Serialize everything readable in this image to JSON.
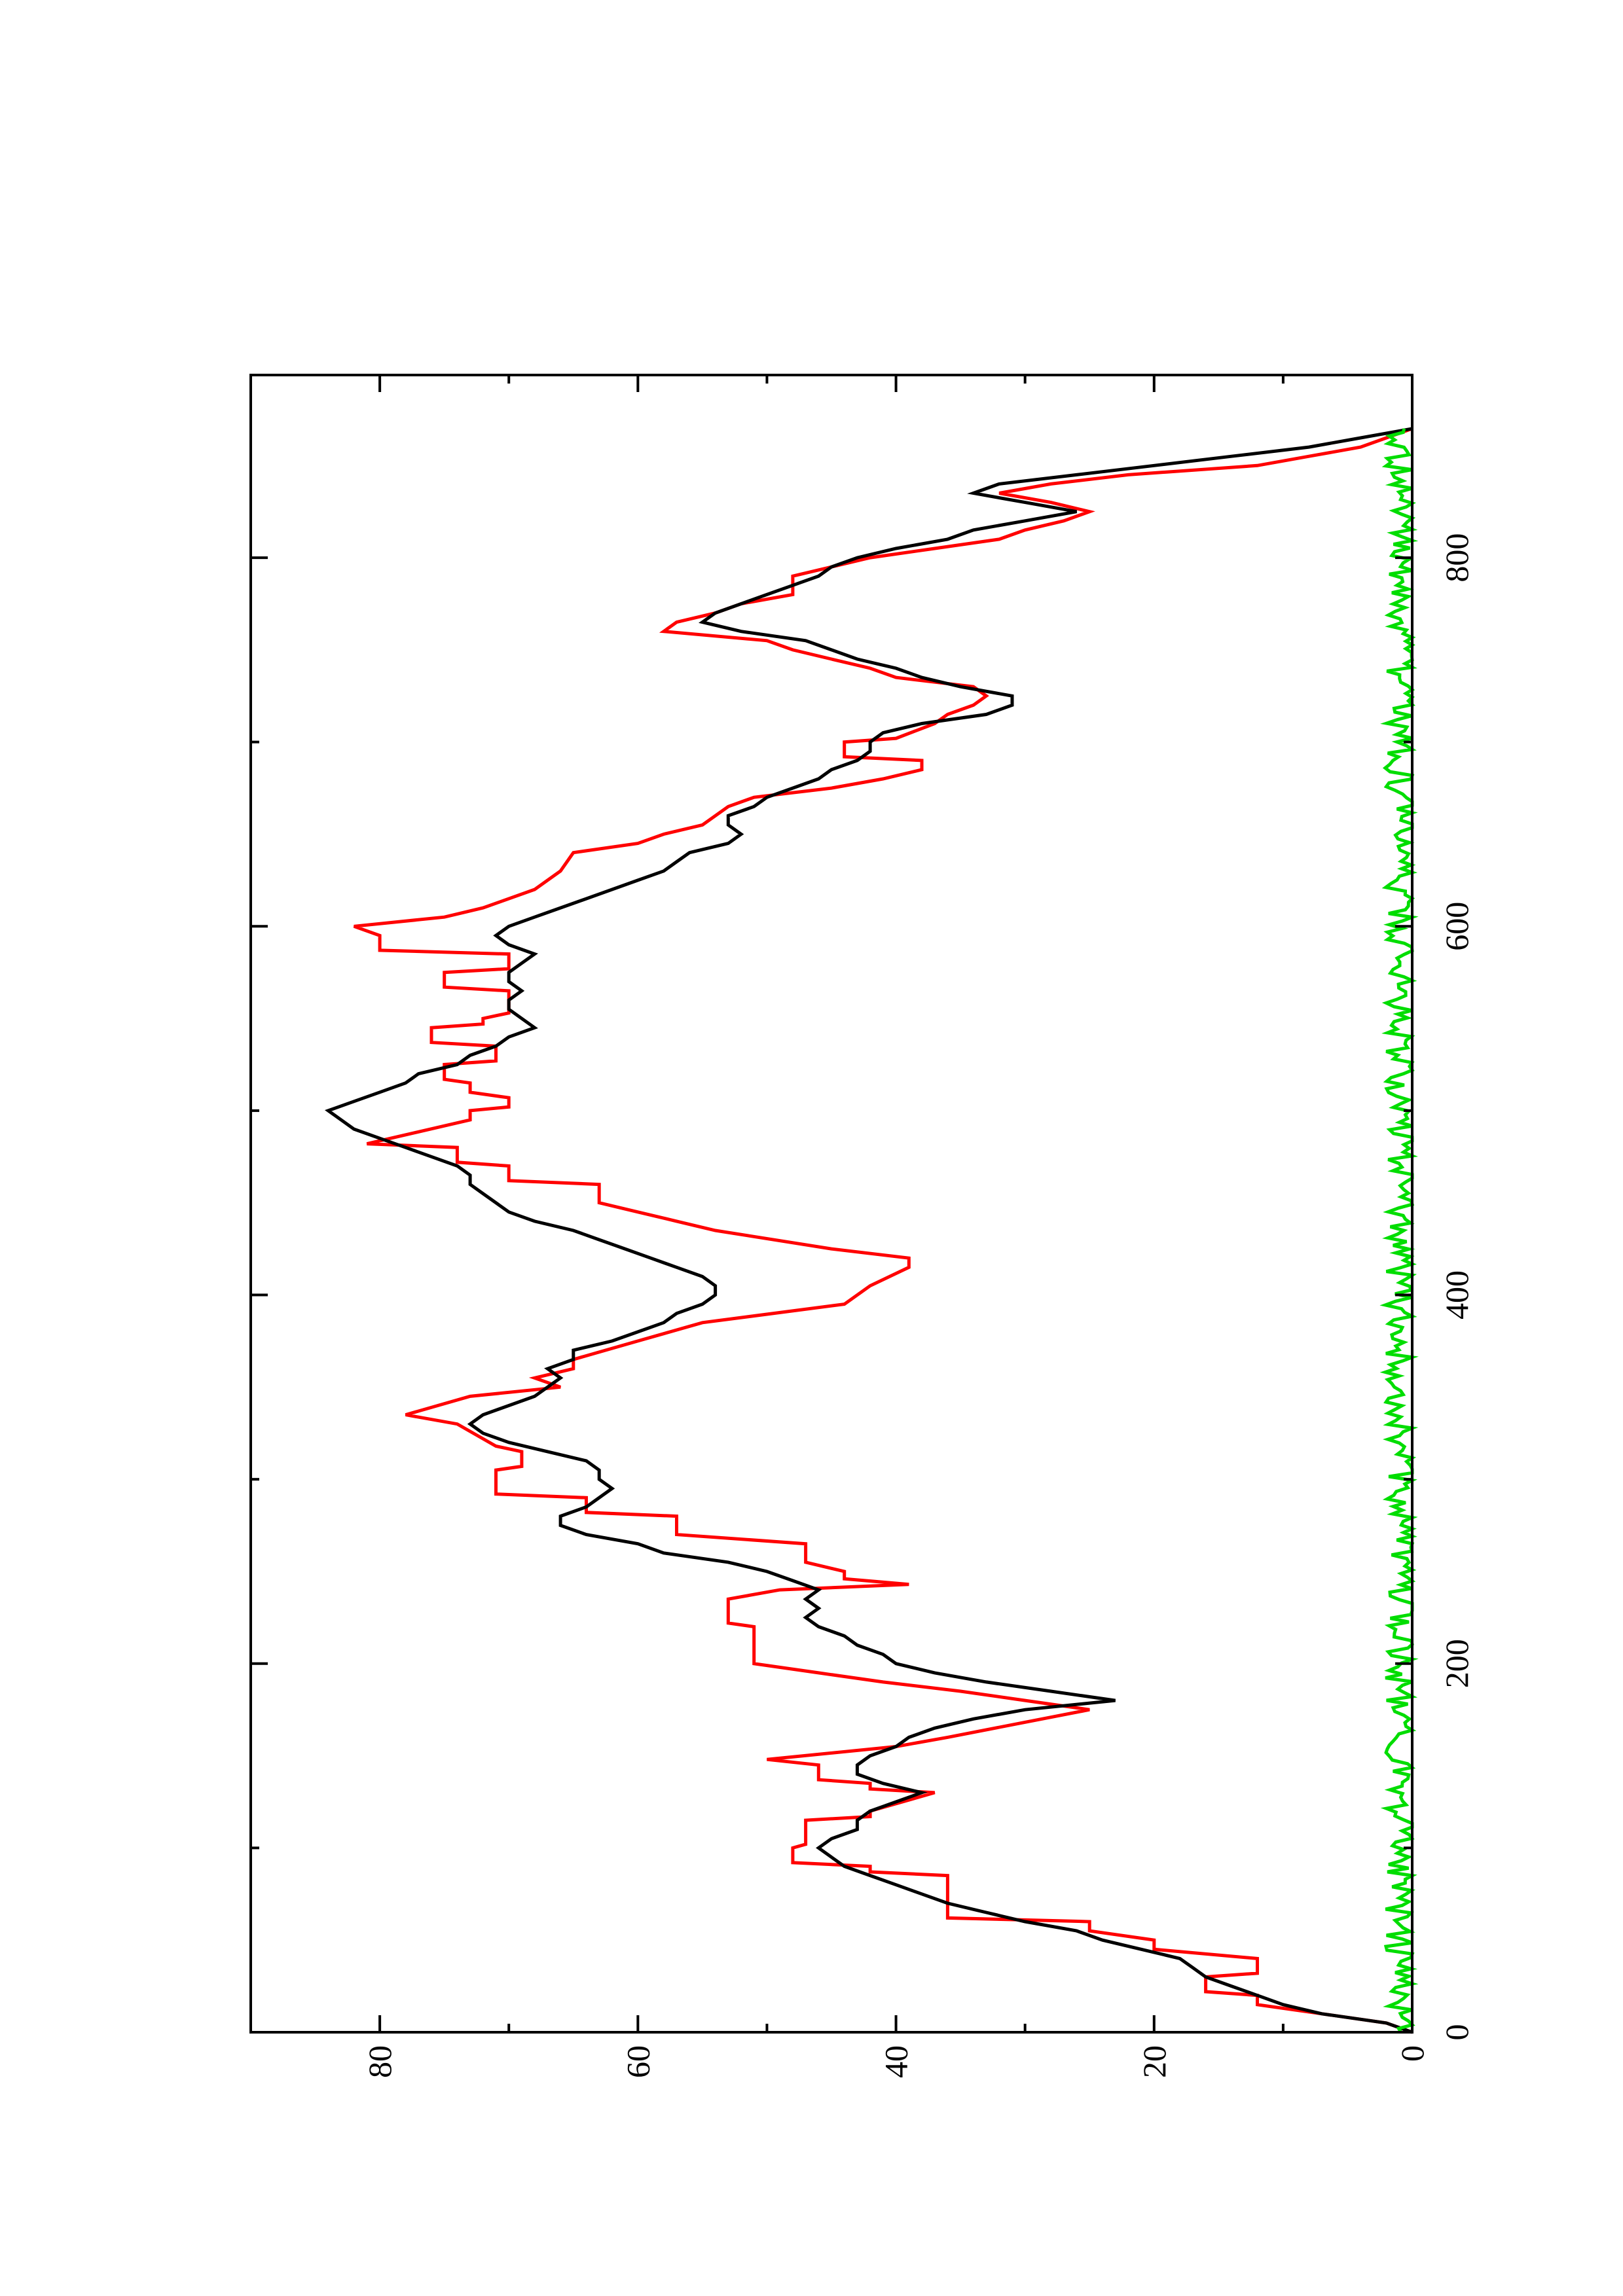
{
  "chart_data": {
    "type": "line",
    "orientation": "rotated-90-counterclockwise",
    "xlabel": "",
    "ylabel": "",
    "xlim": [
      0,
      880
    ],
    "ylim": [
      0,
      90
    ],
    "grid": false,
    "x_ticks": [
      0,
      200,
      400,
      600,
      800
    ],
    "x_tick_labels": [
      "0",
      "200",
      "400",
      "600",
      "800"
    ],
    "x_minor_ticks": [
      100,
      300,
      500,
      700
    ],
    "y_ticks": [
      0,
      20,
      40,
      60,
      80
    ],
    "y_tick_labels": [
      "0",
      "20",
      "40",
      "60",
      "80"
    ],
    "y_minor_ticks": [
      10,
      30,
      50,
      70
    ],
    "series": [
      {
        "color": "#ff0000",
        "style": "step",
        "points": [
          [
            0,
            0
          ],
          [
            5,
            2
          ],
          [
            10,
            7
          ],
          [
            15,
            12
          ],
          [
            20,
            12
          ],
          [
            22,
            16
          ],
          [
            30,
            16
          ],
          [
            32,
            12
          ],
          [
            40,
            12
          ],
          [
            45,
            20
          ],
          [
            50,
            20
          ],
          [
            55,
            25
          ],
          [
            60,
            25
          ],
          [
            62,
            36
          ],
          [
            85,
            36
          ],
          [
            87,
            42
          ],
          [
            90,
            42
          ],
          [
            92,
            48
          ],
          [
            100,
            48
          ],
          [
            102,
            47
          ],
          [
            115,
            47
          ],
          [
            117,
            42
          ],
          [
            120,
            42
          ],
          [
            130,
            37
          ],
          [
            132,
            42
          ],
          [
            135,
            42
          ],
          [
            137,
            46
          ],
          [
            145,
            46
          ],
          [
            148,
            50
          ],
          [
            155,
            40
          ],
          [
            160,
            36
          ],
          [
            175,
            25
          ],
          [
            180,
            30
          ],
          [
            185,
            35
          ],
          [
            190,
            41
          ],
          [
            195,
            46
          ],
          [
            200,
            51
          ],
          [
            220,
            51
          ],
          [
            222,
            53
          ],
          [
            235,
            53
          ],
          [
            240,
            49
          ],
          [
            243,
            39
          ],
          [
            246,
            44
          ],
          [
            250,
            44
          ],
          [
            255,
            47
          ],
          [
            265,
            47
          ],
          [
            270,
            57
          ],
          [
            280,
            57
          ],
          [
            282,
            64
          ],
          [
            290,
            64
          ],
          [
            292,
            71
          ],
          [
            305,
            71
          ],
          [
            307,
            69
          ],
          [
            315,
            69
          ],
          [
            318,
            71
          ],
          [
            330,
            74
          ],
          [
            335,
            78
          ],
          [
            345,
            73
          ],
          [
            350,
            66
          ],
          [
            355,
            68
          ],
          [
            360,
            65
          ],
          [
            365,
            65
          ],
          [
            375,
            60
          ],
          [
            385,
            55
          ],
          [
            395,
            44
          ],
          [
            405,
            42
          ],
          [
            415,
            39
          ],
          [
            420,
            39
          ],
          [
            425,
            45
          ],
          [
            435,
            54
          ],
          [
            440,
            57
          ],
          [
            445,
            60
          ],
          [
            450,
            63
          ],
          [
            460,
            63
          ],
          [
            462,
            70
          ],
          [
            470,
            70
          ],
          [
            472,
            74
          ],
          [
            480,
            74
          ],
          [
            482,
            81
          ],
          [
            495,
            73
          ],
          [
            500,
            73
          ],
          [
            502,
            70
          ],
          [
            507,
            70
          ],
          [
            510,
            73
          ],
          [
            515,
            73
          ],
          [
            517,
            75
          ],
          [
            525,
            75
          ],
          [
            527,
            71
          ],
          [
            535,
            71
          ],
          [
            537,
            76
          ],
          [
            545,
            76
          ],
          [
            547,
            72
          ],
          [
            550,
            72
          ],
          [
            553,
            70
          ],
          [
            565,
            70
          ],
          [
            567,
            75
          ],
          [
            575,
            75
          ],
          [
            577,
            70
          ],
          [
            585,
            70
          ],
          [
            587,
            80
          ],
          [
            595,
            80
          ],
          [
            600,
            82
          ],
          [
            605,
            75
          ],
          [
            610,
            72
          ],
          [
            620,
            68
          ],
          [
            630,
            66
          ],
          [
            640,
            65
          ],
          [
            645,
            60
          ],
          [
            650,
            58
          ],
          [
            655,
            55
          ],
          [
            665,
            53
          ],
          [
            670,
            51
          ],
          [
            675,
            45
          ],
          [
            680,
            41
          ],
          [
            685,
            38
          ],
          [
            690,
            38
          ],
          [
            692,
            44
          ],
          [
            700,
            44
          ],
          [
            702,
            40
          ],
          [
            710,
            37
          ],
          [
            715,
            36
          ],
          [
            720,
            34
          ],
          [
            725,
            33
          ],
          [
            730,
            34
          ],
          [
            735,
            40
          ],
          [
            740,
            42
          ],
          [
            745,
            45
          ],
          [
            750,
            48
          ],
          [
            755,
            50
          ],
          [
            760,
            58
          ],
          [
            765,
            57
          ],
          [
            770,
            54
          ],
          [
            775,
            52
          ],
          [
            780,
            48
          ],
          [
            790,
            48
          ],
          [
            795,
            45
          ],
          [
            800,
            42
          ],
          [
            805,
            37
          ],
          [
            810,
            32
          ],
          [
            815,
            30
          ],
          [
            820,
            27
          ],
          [
            825,
            25
          ],
          [
            830,
            28
          ],
          [
            835,
            32
          ],
          [
            840,
            28
          ],
          [
            845,
            22
          ],
          [
            850,
            12
          ],
          [
            855,
            8
          ],
          [
            860,
            4
          ],
          [
            865,
            2
          ],
          [
            870,
            0
          ]
        ]
      },
      {
        "color": "#000000",
        "style": "line",
        "points": [
          [
            0,
            0
          ],
          [
            5,
            2
          ],
          [
            10,
            7
          ],
          [
            15,
            10
          ],
          [
            20,
            12
          ],
          [
            25,
            14
          ],
          [
            30,
            16
          ],
          [
            35,
            17
          ],
          [
            40,
            18
          ],
          [
            45,
            21
          ],
          [
            50,
            24
          ],
          [
            55,
            26
          ],
          [
            60,
            30
          ],
          [
            65,
            33
          ],
          [
            70,
            36
          ],
          [
            75,
            38
          ],
          [
            80,
            40
          ],
          [
            85,
            42
          ],
          [
            90,
            44
          ],
          [
            95,
            45
          ],
          [
            100,
            46
          ],
          [
            105,
            45
          ],
          [
            110,
            43
          ],
          [
            115,
            43
          ],
          [
            120,
            42
          ],
          [
            125,
            40
          ],
          [
            130,
            38
          ],
          [
            135,
            41
          ],
          [
            140,
            43
          ],
          [
            145,
            43
          ],
          [
            150,
            42
          ],
          [
            155,
            40
          ],
          [
            160,
            39
          ],
          [
            165,
            37
          ],
          [
            170,
            34
          ],
          [
            175,
            30
          ],
          [
            180,
            23
          ],
          [
            185,
            28
          ],
          [
            190,
            33
          ],
          [
            195,
            37
          ],
          [
            200,
            40
          ],
          [
            205,
            41
          ],
          [
            210,
            43
          ],
          [
            215,
            44
          ],
          [
            220,
            46
          ],
          [
            225,
            47
          ],
          [
            230,
            46
          ],
          [
            235,
            47
          ],
          [
            240,
            46
          ],
          [
            245,
            48
          ],
          [
            250,
            50
          ],
          [
            255,
            53
          ],
          [
            260,
            58
          ],
          [
            265,
            60
          ],
          [
            270,
            64
          ],
          [
            275,
            66
          ],
          [
            280,
            66
          ],
          [
            285,
            64
          ],
          [
            290,
            63
          ],
          [
            295,
            62
          ],
          [
            300,
            63
          ],
          [
            305,
            63
          ],
          [
            310,
            64
          ],
          [
            315,
            67
          ],
          [
            320,
            70
          ],
          [
            325,
            72
          ],
          [
            330,
            73
          ],
          [
            335,
            72
          ],
          [
            340,
            70
          ],
          [
            345,
            68
          ],
          [
            350,
            67
          ],
          [
            355,
            66
          ],
          [
            360,
            67
          ],
          [
            365,
            65
          ],
          [
            370,
            65
          ],
          [
            375,
            62
          ],
          [
            380,
            60
          ],
          [
            385,
            58
          ],
          [
            390,
            57
          ],
          [
            395,
            55
          ],
          [
            400,
            54
          ],
          [
            405,
            54
          ],
          [
            410,
            55
          ],
          [
            415,
            57
          ],
          [
            420,
            59
          ],
          [
            425,
            61
          ],
          [
            430,
            63
          ],
          [
            435,
            65
          ],
          [
            440,
            68
          ],
          [
            445,
            70
          ],
          [
            450,
            71
          ],
          [
            455,
            72
          ],
          [
            460,
            73
          ],
          [
            465,
            73
          ],
          [
            470,
            74
          ],
          [
            475,
            76
          ],
          [
            480,
            78
          ],
          [
            485,
            80
          ],
          [
            490,
            82
          ],
          [
            495,
            83
          ],
          [
            500,
            84
          ],
          [
            505,
            82
          ],
          [
            510,
            80
          ],
          [
            515,
            78
          ],
          [
            520,
            77
          ],
          [
            525,
            74
          ],
          [
            530,
            73
          ],
          [
            535,
            71
          ],
          [
            540,
            70
          ],
          [
            545,
            68
          ],
          [
            550,
            69
          ],
          [
            555,
            70
          ],
          [
            560,
            70
          ],
          [
            565,
            69
          ],
          [
            570,
            70
          ],
          [
            575,
            70
          ],
          [
            580,
            69
          ],
          [
            585,
            68
          ],
          [
            590,
            70
          ],
          [
            595,
            71
          ],
          [
            600,
            70
          ],
          [
            605,
            68
          ],
          [
            610,
            66
          ],
          [
            615,
            64
          ],
          [
            620,
            62
          ],
          [
            625,
            60
          ],
          [
            630,
            58
          ],
          [
            635,
            57
          ],
          [
            640,
            56
          ],
          [
            645,
            53
          ],
          [
            650,
            52
          ],
          [
            655,
            53
          ],
          [
            660,
            53
          ],
          [
            665,
            51
          ],
          [
            670,
            50
          ],
          [
            675,
            48
          ],
          [
            680,
            46
          ],
          [
            685,
            45
          ],
          [
            690,
            43
          ],
          [
            695,
            42
          ],
          [
            700,
            42
          ],
          [
            705,
            41
          ],
          [
            710,
            38
          ],
          [
            715,
            33
          ],
          [
            720,
            31
          ],
          [
            725,
            31
          ],
          [
            730,
            35
          ],
          [
            735,
            38
          ],
          [
            740,
            40
          ],
          [
            745,
            43
          ],
          [
            750,
            45
          ],
          [
            755,
            47
          ],
          [
            760,
            52
          ],
          [
            765,
            55
          ],
          [
            770,
            54
          ],
          [
            775,
            52
          ],
          [
            780,
            50
          ],
          [
            785,
            48
          ],
          [
            790,
            46
          ],
          [
            795,
            45
          ],
          [
            800,
            43
          ],
          [
            805,
            40
          ],
          [
            810,
            36
          ],
          [
            815,
            34
          ],
          [
            820,
            30
          ],
          [
            825,
            26
          ],
          [
            830,
            30
          ],
          [
            835,
            34
          ],
          [
            840,
            32
          ],
          [
            845,
            26
          ],
          [
            850,
            20
          ],
          [
            855,
            14
          ],
          [
            860,
            8
          ],
          [
            865,
            4
          ],
          [
            870,
            0
          ]
        ]
      },
      {
        "color": "#00dd00",
        "style": "noise",
        "seed": 7,
        "n": 430,
        "x_range": [
          0,
          870
        ],
        "y_base": 0.9,
        "y_amp": 1.2
      }
    ]
  }
}
